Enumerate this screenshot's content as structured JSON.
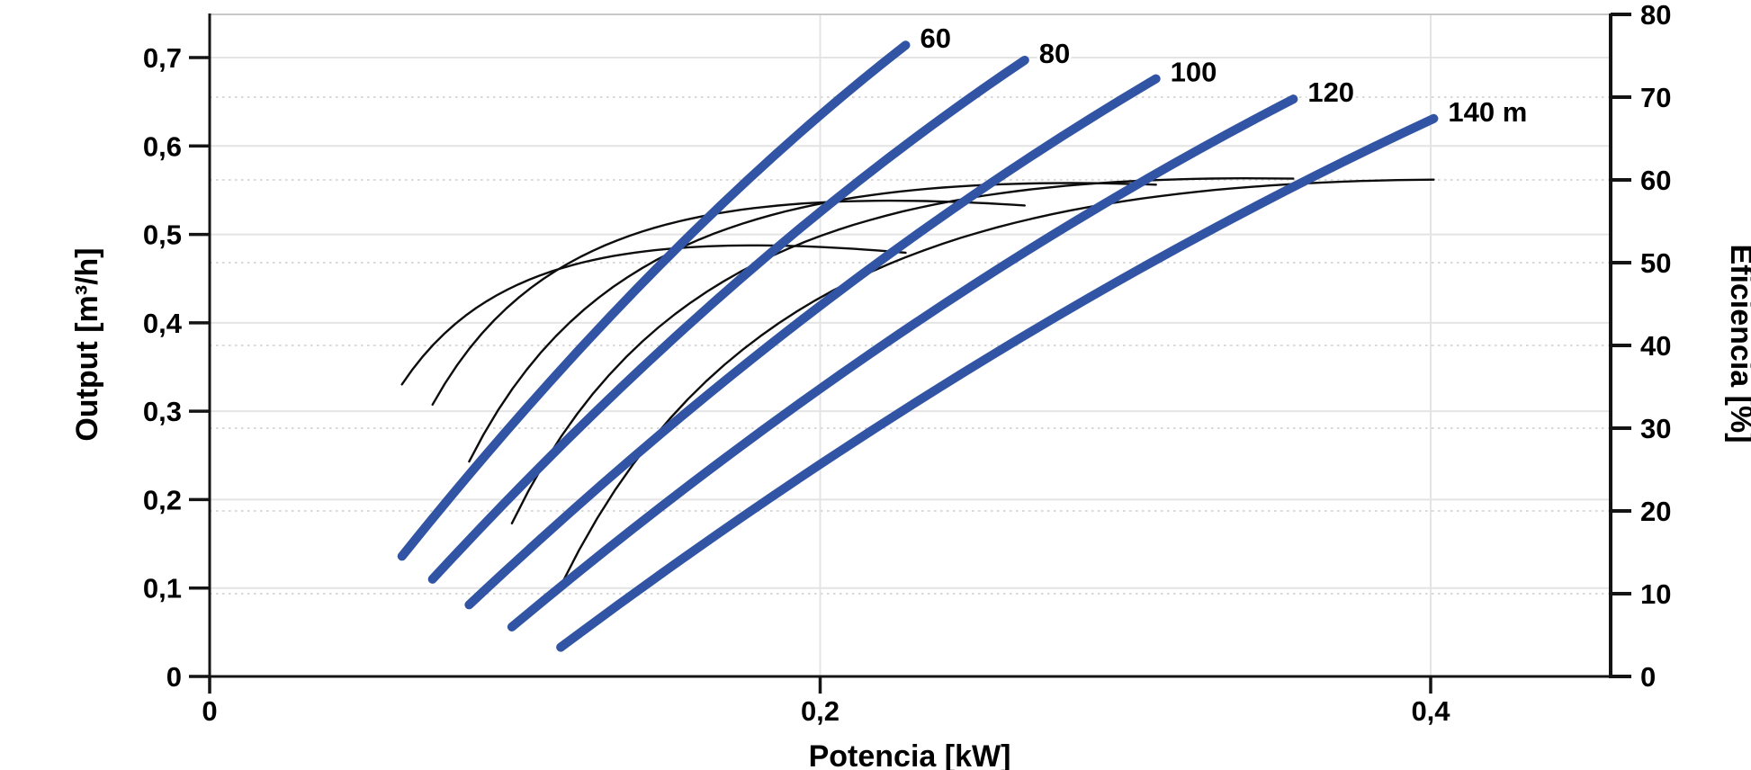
{
  "chart_data": {
    "type": "line",
    "title": "",
    "xlabel": "Potencia [kW]",
    "ylabel_left": "Output [m³/h]",
    "ylabel_right": "Eficiencia [%]",
    "decimal_separator": ",",
    "xlim": [
      0,
      0.459
    ],
    "ylim_left": [
      0,
      0.749
    ],
    "ylim_right": [
      0,
      80
    ],
    "grid": {
      "horizontal_solid_at_left_ticks": true,
      "horizontal_dotted_at_right_ticks": true,
      "vertical_at_x_ticks": true
    },
    "x_ticks": [
      {
        "v": 0,
        "label": "0"
      },
      {
        "v": 0.2,
        "label": "0,2"
      },
      {
        "v": 0.4,
        "label": "0,4"
      }
    ],
    "y_ticks_left": [
      {
        "v": 0,
        "label": "0"
      },
      {
        "v": 0.1,
        "label": "0,1"
      },
      {
        "v": 0.2,
        "label": "0,2"
      },
      {
        "v": 0.3,
        "label": "0,3"
      },
      {
        "v": 0.4,
        "label": "0,4"
      },
      {
        "v": 0.5,
        "label": "0,5"
      },
      {
        "v": 0.6,
        "label": "0,6"
      },
      {
        "v": 0.7,
        "label": "0,7"
      }
    ],
    "y_ticks_right": [
      {
        "v": 0,
        "label": "0"
      },
      {
        "v": 10,
        "label": "10"
      },
      {
        "v": 20,
        "label": "20"
      },
      {
        "v": 30,
        "label": "30"
      },
      {
        "v": 40,
        "label": "40"
      },
      {
        "v": 50,
        "label": "50"
      },
      {
        "v": 60,
        "label": "60"
      },
      {
        "v": 70,
        "label": "70"
      },
      {
        "v": 80,
        "label": "80"
      }
    ],
    "series": [
      {
        "name": "head-60",
        "label": "60",
        "head_m": 60,
        "axis": "left",
        "points": [
          [
            0.063,
            0.136
          ],
          [
            0.146,
            0.46
          ],
          [
            0.228,
            0.714
          ]
        ]
      },
      {
        "name": "head-80",
        "label": "80",
        "head_m": 80,
        "axis": "left",
        "points": [
          [
            0.073,
            0.11
          ],
          [
            0.17,
            0.438
          ],
          [
            0.267,
            0.697
          ]
        ]
      },
      {
        "name": "head-100",
        "label": "100",
        "head_m": 100,
        "axis": "left",
        "points": [
          [
            0.085,
            0.081
          ],
          [
            0.198,
            0.414
          ],
          [
            0.31,
            0.676
          ]
        ]
      },
      {
        "name": "head-120",
        "label": "120",
        "head_m": 120,
        "axis": "left",
        "points": [
          [
            0.099,
            0.056
          ],
          [
            0.227,
            0.39
          ],
          [
            0.355,
            0.653
          ]
        ]
      },
      {
        "name": "head-140",
        "label": "140 m",
        "head_m": 140,
        "axis": "left",
        "points": [
          [
            0.115,
            0.033
          ],
          [
            0.258,
            0.367
          ],
          [
            0.401,
            0.631
          ]
        ]
      }
    ],
    "efficiency_curves": {
      "note": "thin black curves, right axis; eff_% = k · Q[m³/h] · H[m] / P[kW], spanning each pump curve's power range",
      "k": 0.2725,
      "endpoints": [
        {
          "head_m": 60,
          "start": [
            0.063,
            35.5
          ],
          "end": [
            0.228,
            51.3
          ]
        },
        {
          "head_m": 80,
          "start": [
            0.073,
            32.7
          ],
          "end": [
            0.267,
            56.8
          ]
        },
        {
          "head_m": 100,
          "start": [
            0.085,
            26.1
          ],
          "end": [
            0.31,
            59.4
          ]
        },
        {
          "head_m": 120,
          "start": [
            0.099,
            18.6
          ],
          "end": [
            0.355,
            60.1
          ]
        },
        {
          "head_m": 140,
          "start": [
            0.115,
            10.9
          ],
          "end": [
            0.401,
            60.1
          ]
        }
      ]
    },
    "style": {
      "pump_curve_color": "#3254a4",
      "efficiency_curve_color": "#0d0d0d",
      "grid_solid_color": "#e4e4e4",
      "grid_dotted_color": "#d9d9d9",
      "top_border_color": "#c8c8c8",
      "axis_color": "#141414",
      "background": "#ffffff"
    }
  }
}
